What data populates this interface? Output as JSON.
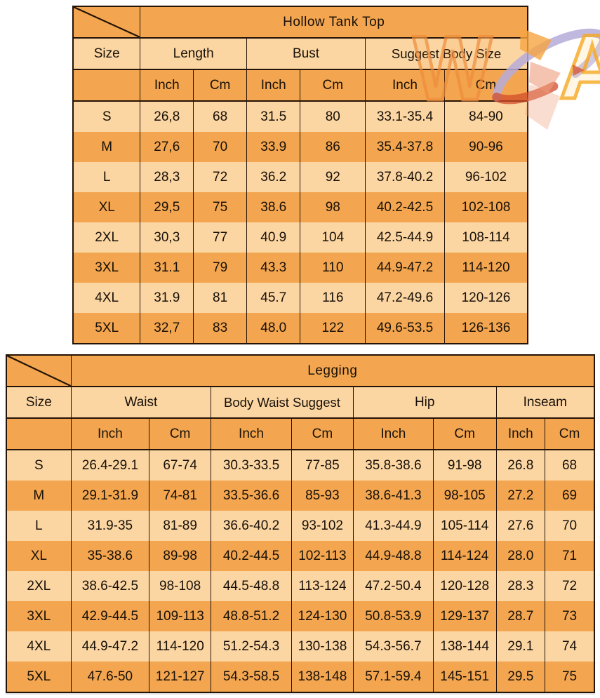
{
  "colors": {
    "background": "#FFFFFF",
    "row_dark": "#F3A64F",
    "row_light": "#FBD6A3",
    "border": "#241307",
    "text": "#181008"
  },
  "chart_data": [
    {
      "type": "table",
      "title": "Hollow Tank Top",
      "corner_label": "Size",
      "groups": [
        {
          "label": "Length",
          "cols": 2
        },
        {
          "label": "Bust",
          "cols": 2
        },
        {
          "label": "Suggest Body Size",
          "cols": 2
        }
      ],
      "subheaders": [
        "Inch",
        "Cm",
        "Inch",
        "Cm",
        "Inch",
        "Cm"
      ],
      "rows": [
        {
          "size": "S",
          "cells": [
            "26,8",
            "68",
            "31.5",
            "80",
            "33.1-35.4",
            "84-90"
          ]
        },
        {
          "size": "M",
          "cells": [
            "27,6",
            "70",
            "33.9",
            "86",
            "35.4-37.8",
            "90-96"
          ]
        },
        {
          "size": "L",
          "cells": [
            "28,3",
            "72",
            "36.2",
            "92",
            "37.8-40.2",
            "96-102"
          ]
        },
        {
          "size": "XL",
          "cells": [
            "29,5",
            "75",
            "38.6",
            "98",
            "40.2-42.5",
            "102-108"
          ]
        },
        {
          "size": "2XL",
          "cells": [
            "30,3",
            "77",
            "40.9",
            "104",
            "42.5-44.9",
            "108-114"
          ]
        },
        {
          "size": "3XL",
          "cells": [
            "31.1",
            "79",
            "43.3",
            "110",
            "44.9-47.2",
            "114-120"
          ]
        },
        {
          "size": "4XL",
          "cells": [
            "31.9",
            "81",
            "45.7",
            "116",
            "47.2-49.6",
            "120-126"
          ]
        },
        {
          "size": "5XL",
          "cells": [
            "32,7",
            "83",
            "48.0",
            "122",
            "49.6-53.5",
            "126-136"
          ]
        }
      ]
    },
    {
      "type": "table",
      "title": "Legging",
      "corner_label": "Size",
      "groups": [
        {
          "label": "Waist",
          "cols": 2
        },
        {
          "label": "Body Waist Suggest",
          "cols": 2
        },
        {
          "label": "Hip",
          "cols": 2
        },
        {
          "label": "Inseam",
          "cols": 2
        }
      ],
      "subheaders": [
        "Inch",
        "Cm",
        "Inch",
        "Cm",
        "Inch",
        "Cm",
        "Inch",
        "Cm"
      ],
      "rows": [
        {
          "size": "S",
          "cells": [
            "26.4-29.1",
            "67-74",
            "30.3-33.5",
            "77-85",
            "35.8-38.6",
            "91-98",
            "26.8",
            "68"
          ]
        },
        {
          "size": "M",
          "cells": [
            "29.1-31.9",
            "74-81",
            "33.5-36.6",
            "85-93",
            "38.6-41.3",
            "98-105",
            "27.2",
            "69"
          ]
        },
        {
          "size": "L",
          "cells": [
            "31.9-35",
            "81-89",
            "36.6-40.2",
            "93-102",
            "41.3-44.9",
            "105-114",
            "27.6",
            "70"
          ]
        },
        {
          "size": "XL",
          "cells": [
            "35-38.6",
            "89-98",
            "40.2-44.5",
            "102-113",
            "44.9-48.8",
            "114-124",
            "28.0",
            "71"
          ]
        },
        {
          "size": "2XL",
          "cells": [
            "38.6-42.5",
            "98-108",
            "44.5-48.8",
            "113-124",
            "47.2-50.4",
            "120-128",
            "28.3",
            "72"
          ]
        },
        {
          "size": "3XL",
          "cells": [
            "42.9-44.5",
            "109-113",
            "48.8-51.2",
            "124-130",
            "50.8-53.9",
            "129-137",
            "28.7",
            "73"
          ]
        },
        {
          "size": "4XL",
          "cells": [
            "44.9-47.2",
            "114-120",
            "51.2-54.3",
            "130-138",
            "54.3-56.7",
            "138-144",
            "29.1",
            "74"
          ]
        },
        {
          "size": "5XL",
          "cells": [
            "47.6-50",
            "121-127",
            "54.3-58.5",
            "138-148",
            "57.1-59.4",
            "145-151",
            "29.5",
            "75"
          ]
        }
      ]
    }
  ],
  "watermark": {
    "letters": [
      "W",
      "A"
    ],
    "colors": {
      "orange": "#EF8D3C",
      "amber": "#F6A81F",
      "lavender": "#B6ABDA",
      "red": "#D14B2A",
      "salmon": "#EE9D7B",
      "chevron": "#F6A441"
    }
  }
}
